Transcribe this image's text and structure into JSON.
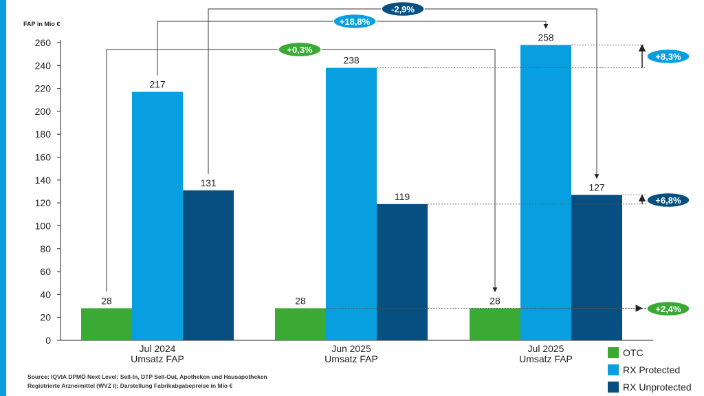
{
  "chart_data": {
    "type": "bar",
    "ylabel": "FAP in Mio €",
    "ylim": [
      0,
      260
    ],
    "yticks": [
      0,
      20,
      40,
      60,
      80,
      100,
      120,
      140,
      160,
      180,
      200,
      220,
      240,
      260
    ],
    "grid": false,
    "legend_position": "bottom-right",
    "categories": [
      [
        "Jul 2024",
        "Umsatz FAP"
      ],
      [
        "Jun 2025",
        "Umsatz FAP"
      ],
      [
        "Jul 2025",
        "Umsatz FAP"
      ]
    ],
    "series": [
      {
        "name": "OTC",
        "values": [
          28,
          28,
          28
        ],
        "color": "#3aaa35"
      },
      {
        "name": "RX Protected",
        "values": [
          217,
          238,
          258
        ],
        "color": "#079fe0"
      },
      {
        "name": "RX Unprotected",
        "values": [
          131,
          119,
          127
        ],
        "color": "#064f80"
      }
    ],
    "growth_badges_yoy": [
      {
        "label": "+0,3%",
        "series": "OTC",
        "color": "#3aaa35"
      },
      {
        "label": "+18,8%",
        "series": "RX Protected",
        "color": "#079fe0"
      },
      {
        "label": "-2,9%",
        "series": "RX Unprotected",
        "color": "#064f80"
      }
    ],
    "growth_badges_mom": [
      {
        "label": "+8,3%",
        "series": "RX Protected",
        "color": "#079fe0"
      },
      {
        "label": "+6,8%",
        "series": "RX Unprotected",
        "color": "#064f80"
      },
      {
        "label": "+2,4%",
        "series": "OTC",
        "color": "#3aaa35"
      }
    ]
  },
  "source": {
    "line1": "Source: IQVIA DPMÖ Next Level; Sell-In, DTP Sell-Out, Apotheken und Hausapotheken",
    "line2": "Registrierte Arzneimittel (WVZ I); Darstellung Fabrikabgabepreise in Mio €"
  },
  "accent_color": "#079fe0"
}
